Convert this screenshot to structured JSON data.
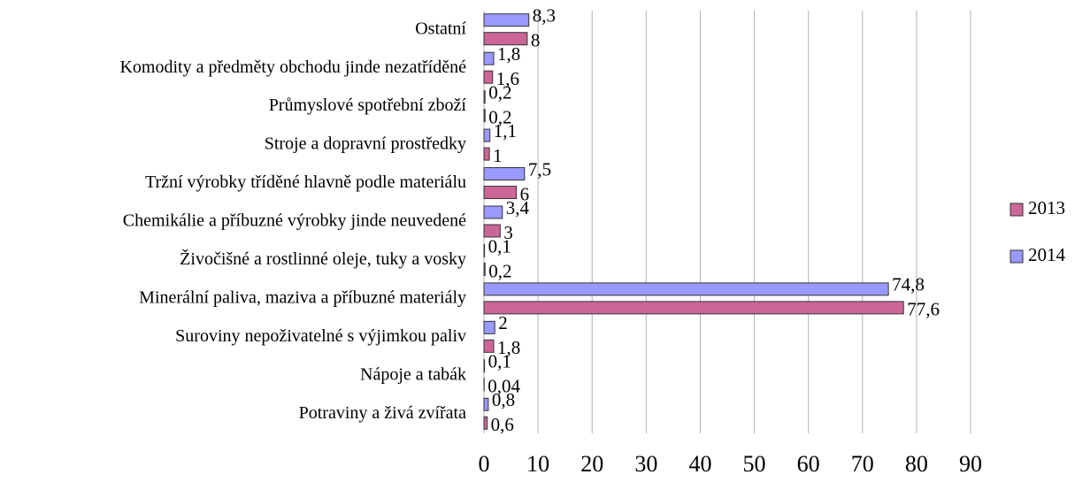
{
  "chart_data": {
    "type": "hbar",
    "categories": [
      "Ostatní",
      "Komodity a předměty obchodu jinde nezatříděné",
      "Průmyslové spotřební zboží",
      "Stroje a dopravní prostředky",
      "Tržní výrobky tříděné hlavně podle materiálu ",
      "Chemikálie a příbuzné výrobky jinde neuvedené ",
      "Živočišné a rostlinné oleje, tuky a vosky",
      "Minerální paliva, maziva a příbuzné materiály ",
      "Suroviny nepoživatelné s výjimkou paliv ",
      "Nápoje a tabák",
      "Potraviny a živá zvířata"
    ],
    "series": [
      {
        "name": "2013",
        "color": "#cc6699",
        "values": [
          8,
          1.6,
          0.2,
          1,
          6,
          3,
          0.2,
          77.6,
          1.8,
          0.04,
          0.6
        ],
        "value_labels": [
          "8",
          "1,6",
          "0,2",
          "1",
          "6",
          "3",
          "0,2",
          "77,6",
          "1,8",
          "0,04",
          "0,6"
        ]
      },
      {
        "name": "2014",
        "color": "#9999ff",
        "values": [
          8.3,
          1.8,
          0.2,
          1.1,
          7.5,
          3.4,
          0.1,
          74.8,
          2,
          0.1,
          0.8
        ],
        "value_labels": [
          "8,3",
          "1,8",
          "0,2",
          "1,1",
          "7,5",
          "3,4",
          "0,1",
          "74,8",
          "2",
          "0,1",
          "0,8"
        ]
      }
    ],
    "xlim": [
      0,
      90
    ],
    "xticks": [
      0,
      10,
      20,
      30,
      40,
      50,
      60,
      70,
      80,
      90
    ],
    "grid": true,
    "legend": "right"
  }
}
